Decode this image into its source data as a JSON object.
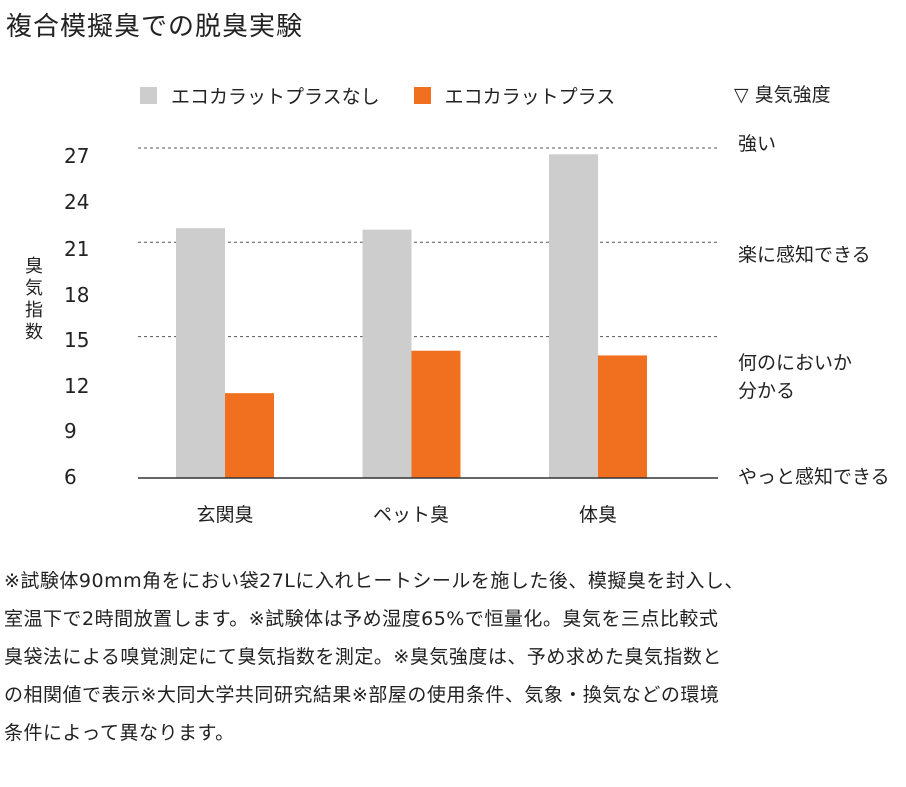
{
  "title": "複合模擬臭での脱臭実験",
  "intensity_title": "▽ 臭気強度",
  "colors": {
    "without": "#cdcdcd",
    "with": "#f07020",
    "axis": "#333333",
    "gridline": "#555555"
  },
  "chart_data": {
    "type": "bar",
    "categories": [
      "玄関臭",
      "ペット臭",
      "体臭"
    ],
    "series": [
      {
        "name": "エコカラットプラスなし",
        "values": [
          21.9,
          21.8,
          26.6
        ]
      },
      {
        "name": "エコカラットプラス",
        "values": [
          11.4,
          14.1,
          13.8
        ]
      }
    ],
    "ylabel": "臭気指数",
    "ylim": [
      6,
      27
    ],
    "yticks": [
      "27",
      "24",
      "21",
      "18",
      "15",
      "12",
      "9",
      "6"
    ],
    "reference_lines": [
      {
        "value": 27,
        "label": "強い"
      },
      {
        "value": 21,
        "label": "楽に感知できる"
      },
      {
        "value": 15,
        "label_lines": [
          "何のにおいか",
          "分かる"
        ]
      },
      {
        "value": 6,
        "label": "やっと感知できる"
      }
    ]
  },
  "footnote_lines": [
    "※試験体90mm角をにおい袋27Lに入れヒートシールを施した後、模擬臭を封入し、",
    "室温下で2時間放置します。※試験体は予め湿度65%で恒量化。臭気を三点比較式",
    "臭袋法による嗅覚測定にて臭気指数を測定。※臭気強度は、予め求めた臭気指数と",
    "の相関値で表示※大同大学共同研究結果※部屋の使用条件、気象・換気などの環境",
    "条件によって異なります。"
  ]
}
